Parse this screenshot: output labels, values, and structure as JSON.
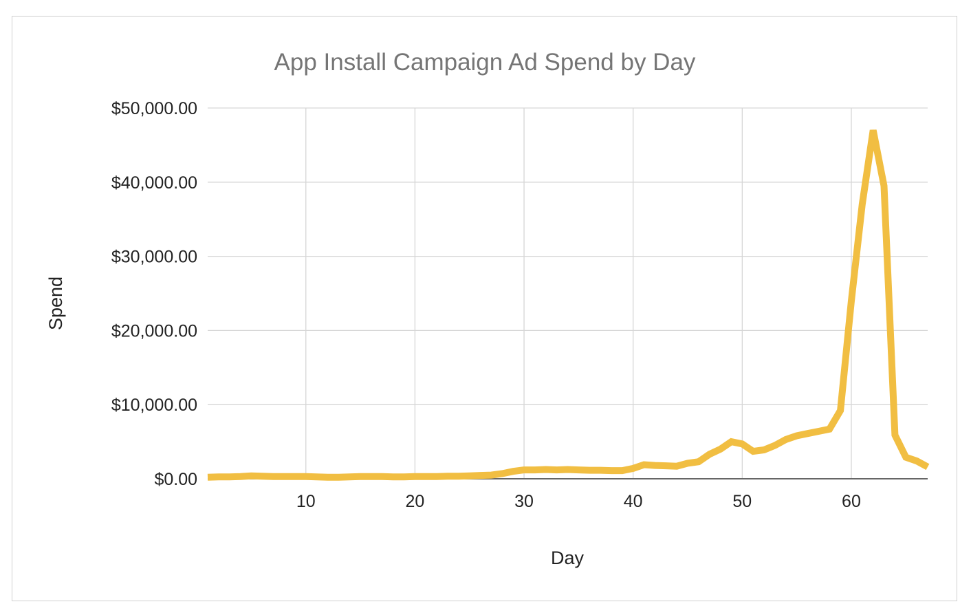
{
  "chart_data": {
    "type": "line",
    "title": "App Install Campaign Ad Spend by Day",
    "xlabel": "Day",
    "ylabel": "Spend",
    "xlim": [
      1,
      67
    ],
    "ylim": [
      0,
      50000
    ],
    "x_ticks": [
      10,
      20,
      30,
      40,
      50,
      60
    ],
    "y_ticks": [
      0,
      10000,
      20000,
      30000,
      40000,
      50000
    ],
    "y_tick_labels": [
      "$0.00",
      "$10,000.00",
      "$20,000.00",
      "$30,000.00",
      "$40,000.00",
      "$50,000.00"
    ],
    "grid": true,
    "line_color": "#f1be42",
    "title_color": "#757575",
    "series": [
      {
        "x": [
          1,
          2,
          3,
          4,
          5,
          6,
          7,
          8,
          9,
          10,
          11,
          12,
          13,
          14,
          15,
          16,
          17,
          18,
          19,
          20,
          21,
          22,
          23,
          24,
          25,
          26,
          27,
          28,
          29,
          30,
          31,
          32,
          33,
          34,
          35,
          36,
          37,
          38,
          39,
          40,
          41,
          42,
          43,
          44,
          45,
          46,
          47,
          48,
          49,
          50,
          51,
          52,
          53,
          54,
          55,
          56,
          57,
          58,
          59,
          60,
          61,
          62,
          63,
          64,
          65,
          66,
          67
        ],
        "values": [
          200,
          250,
          250,
          300,
          400,
          350,
          300,
          300,
          300,
          300,
          250,
          200,
          200,
          250,
          300,
          300,
          300,
          250,
          250,
          300,
          300,
          300,
          350,
          350,
          400,
          450,
          500,
          700,
          1000,
          1200,
          1200,
          1250,
          1200,
          1250,
          1200,
          1150,
          1150,
          1100,
          1100,
          1400,
          1900,
          1800,
          1750,
          1700,
          2100,
          2300,
          3300,
          4000,
          5000,
          4700,
          3700,
          3900,
          4500,
          5300,
          5800,
          6100,
          6400,
          6700,
          9200,
          24000,
          37000,
          47000,
          39500,
          5900,
          2900,
          2400,
          1600
        ]
      }
    ]
  }
}
